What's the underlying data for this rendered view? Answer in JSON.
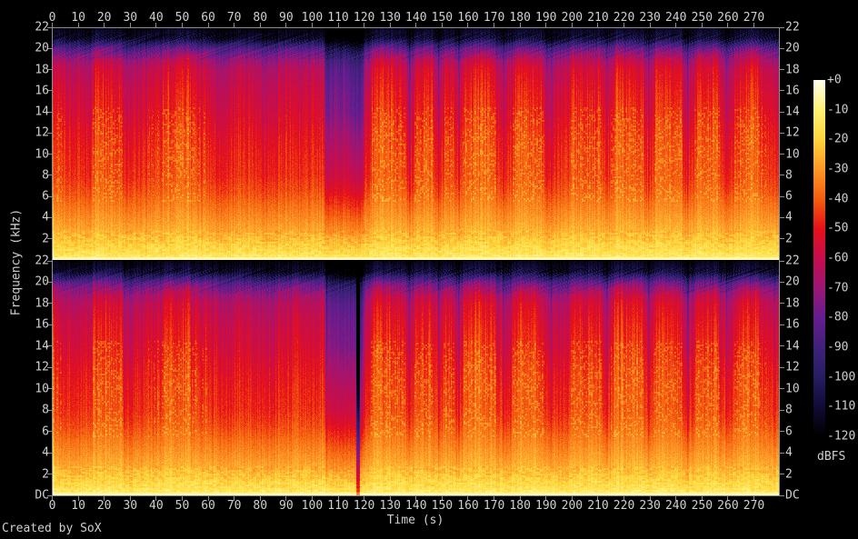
{
  "figure": {
    "background": "#000000",
    "footer": "Created by SoX"
  },
  "axes": {
    "x": {
      "ticks": [
        "0",
        "10",
        "20",
        "30",
        "40",
        "50",
        "60",
        "70",
        "80",
        "90",
        "100",
        "110",
        "120",
        "130",
        "140",
        "150",
        "160",
        "170",
        "180",
        "190",
        "200",
        "210",
        "220",
        "230",
        "240",
        "250",
        "260",
        "270"
      ]
    },
    "y_panel1": {
      "ticks": [
        "22",
        "20",
        "18",
        "16",
        "14",
        "12",
        "10",
        "8",
        "6",
        "4",
        "2"
      ]
    },
    "y_panel2": {
      "ticks": [
        "22",
        "20",
        "18",
        "16",
        "14",
        "12",
        "10",
        "8",
        "6",
        "4",
        "2",
        "DC"
      ]
    }
  },
  "chart_data": {
    "type": "heatmap",
    "subtype": "spectrogram",
    "title": "",
    "xlabel": "Time (s)",
    "ylabel": "Frequency (kHz)",
    "x_range_s": [
      0,
      279.8
    ],
    "x_tick_step_s": 10,
    "y_range_khz": [
      0,
      22
    ],
    "y_tick_step_khz": 2,
    "channels": [
      "channel-1-top",
      "channel-2-bottom"
    ],
    "colorbar": {
      "label": "dBFS",
      "range_db": [
        0,
        -120
      ],
      "ticks": [
        "+0",
        "-10",
        "-20",
        "-30",
        "-40",
        "-50",
        "-60",
        "-70",
        "-80",
        "-90",
        "-100",
        "-110",
        "-120"
      ],
      "stops": [
        {
          "db": 0,
          "color": "#fffdf0"
        },
        {
          "db": -10,
          "color": "#fff174"
        },
        {
          "db": -20,
          "color": "#fed53c"
        },
        {
          "db": -30,
          "color": "#fd9827"
        },
        {
          "db": -40,
          "color": "#f45f0f"
        },
        {
          "db": -50,
          "color": "#e71117"
        },
        {
          "db": -60,
          "color": "#c60d4d"
        },
        {
          "db": -70,
          "color": "#9d1675"
        },
        {
          "db": -80,
          "color": "#651d91"
        },
        {
          "db": -90,
          "color": "#40217c"
        },
        {
          "db": -100,
          "color": "#261d63"
        },
        {
          "db": -110,
          "color": "#110b37"
        },
        {
          "db": -120,
          "color": "#000000"
        }
      ]
    },
    "band_profile_db": [
      [
        22,
        -118
      ],
      [
        21,
        -112
      ],
      [
        20.5,
        -98
      ],
      [
        20,
        -84
      ],
      [
        19.5,
        -76
      ],
      [
        19,
        -70
      ],
      [
        18,
        -63
      ],
      [
        16,
        -58
      ],
      [
        14,
        -55
      ],
      [
        12,
        -51
      ],
      [
        10,
        -48
      ],
      [
        8,
        -46
      ],
      [
        6.5,
        -42
      ],
      [
        5.5,
        -38
      ],
      [
        4.5,
        -34
      ],
      [
        3.5,
        -30
      ],
      [
        2.5,
        -26
      ],
      [
        1.5,
        -21
      ],
      [
        0.8,
        -17
      ],
      [
        0.3,
        -13
      ],
      [
        0.1,
        -9
      ],
      [
        0,
        -6
      ]
    ],
    "modulation_weight": [
      [
        22,
        0.35
      ],
      [
        20.5,
        0.8
      ],
      [
        19,
        1.0
      ],
      [
        14,
        1.0
      ],
      [
        10,
        0.75
      ],
      [
        6,
        0.45
      ],
      [
        3,
        0.25
      ],
      [
        1,
        0.12
      ],
      [
        0,
        0.08
      ]
    ],
    "loud_segments_s": [
      [
        14.5,
        27.5
      ],
      [
        41.5,
        53.5
      ],
      [
        122,
        136.5
      ],
      [
        138.5,
        147
      ],
      [
        150,
        155
      ],
      [
        157.5,
        171
      ],
      [
        176.5,
        190
      ],
      [
        199,
        212
      ],
      [
        215.5,
        228
      ],
      [
        231,
        243
      ],
      [
        246.5,
        257.5
      ],
      [
        261.5,
        272.5
      ]
    ],
    "quiet_segments_s": [
      [
        104,
        120.5
      ]
    ],
    "gap_dips_s": [
      137.3,
      148.5,
      156.3,
      173.5,
      192,
      213.5,
      229.5,
      244.5,
      259.5
    ],
    "channel2_silence_s": [
      116.7,
      118.3
    ],
    "notes": "Broadband stereo music program: bright yellow bass floor (about -6 to -20 dBFS below 2 kHz), orange 2-6 kHz, red 6-18 kHz, crimson-to-purple fringe 18-21 kHz, black above 21 kHz; quieter purple passage around 104-120 s; near-silence notch around 117 s in channel 2."
  }
}
